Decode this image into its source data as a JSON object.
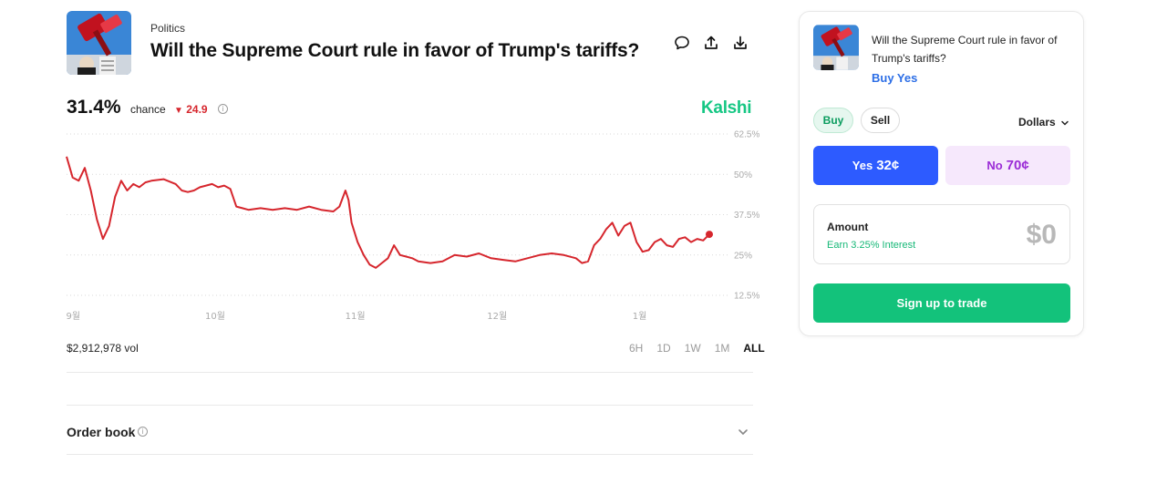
{
  "market": {
    "category": "Politics",
    "title": "Will the Supreme Court rule in favor of Trump's tariffs?",
    "chance_percent": "31.4%",
    "chance_word": "chance",
    "change": "24.9",
    "brand": "Kalshi",
    "volume": "$2,912,978 vol"
  },
  "header_icons": [
    "comment-icon",
    "share-icon",
    "download-icon"
  ],
  "chart_data": {
    "type": "line",
    "series": [
      {
        "color": "#d6262d",
        "points": [
          [
            0,
            55.5
          ],
          [
            1,
            49
          ],
          [
            2,
            48
          ],
          [
            3,
            52
          ],
          [
            4,
            45
          ],
          [
            5,
            36
          ],
          [
            6,
            30
          ],
          [
            7,
            34
          ],
          [
            8,
            43
          ],
          [
            9,
            48
          ],
          [
            10,
            45
          ],
          [
            11,
            47
          ],
          [
            12,
            46
          ],
          [
            13,
            47.5
          ],
          [
            14,
            48
          ],
          [
            16,
            48.5
          ],
          [
            18,
            47
          ],
          [
            19,
            45
          ],
          [
            20,
            44.5
          ],
          [
            21,
            45
          ],
          [
            22,
            46
          ],
          [
            23,
            46.5
          ],
          [
            24,
            47
          ],
          [
            25,
            46
          ],
          [
            26,
            46.5
          ],
          [
            27,
            45.5
          ],
          [
            28,
            40
          ],
          [
            29,
            39.5
          ],
          [
            30,
            39
          ],
          [
            32,
            39.5
          ],
          [
            34,
            39
          ],
          [
            36,
            39.5
          ],
          [
            38,
            39
          ],
          [
            40,
            40
          ],
          [
            42,
            39
          ],
          [
            44,
            38.5
          ],
          [
            45,
            40
          ],
          [
            46,
            45
          ],
          [
            46.5,
            42
          ],
          [
            47,
            35
          ],
          [
            48,
            29
          ],
          [
            49,
            25
          ],
          [
            50,
            22
          ],
          [
            51,
            21
          ],
          [
            52,
            22.5
          ],
          [
            53,
            24
          ],
          [
            54,
            28
          ],
          [
            55,
            25
          ],
          [
            56,
            24.5
          ],
          [
            57,
            24
          ],
          [
            58,
            23
          ],
          [
            60,
            22.5
          ],
          [
            62,
            23
          ],
          [
            64,
            25
          ],
          [
            66,
            24.5
          ],
          [
            68,
            25.5
          ],
          [
            70,
            24
          ],
          [
            72,
            23.5
          ],
          [
            74,
            23
          ],
          [
            76,
            24
          ],
          [
            78,
            25
          ],
          [
            80,
            25.5
          ],
          [
            82,
            25
          ],
          [
            84,
            24
          ],
          [
            85,
            22.5
          ],
          [
            86,
            23
          ],
          [
            87,
            28
          ],
          [
            88,
            30
          ],
          [
            89,
            33
          ],
          [
            90,
            35
          ],
          [
            91,
            31
          ],
          [
            92,
            34
          ],
          [
            93,
            35
          ],
          [
            94,
            29
          ],
          [
            95,
            26
          ],
          [
            96,
            26.5
          ],
          [
            97,
            29
          ],
          [
            98,
            30
          ],
          [
            99,
            28
          ],
          [
            100,
            27.5
          ],
          [
            101,
            30
          ],
          [
            102,
            30.5
          ],
          [
            103,
            29
          ],
          [
            104,
            30
          ],
          [
            105,
            29.5
          ],
          [
            106,
            31.4
          ]
        ]
      }
    ],
    "x_range": [
      0,
      106
    ],
    "y_range": [
      12.5,
      62.5
    ],
    "x_ticks": [
      {
        "x": 1.1,
        "label": "9월"
      },
      {
        "x": 24.5,
        "label": "10월"
      },
      {
        "x": 47.6,
        "label": "11월"
      },
      {
        "x": 71,
        "label": "12월"
      },
      {
        "x": 94.5,
        "label": "1월"
      }
    ],
    "y_ticks": [
      "62.5%",
      "50%",
      "37.5%",
      "25%",
      "12.5%"
    ],
    "y_tick_values": [
      62.5,
      50,
      37.5,
      25,
      12.5
    ],
    "grid": true
  },
  "ranges": {
    "tabs": [
      "6H",
      "1D",
      "1W",
      "1M",
      "ALL"
    ],
    "active": "ALL"
  },
  "order_book": {
    "label": "Order book"
  },
  "panel": {
    "question": "Will the Supreme Court rule in favor of Trump's tariffs?",
    "buy_yes": "Buy Yes",
    "buy_label": "Buy",
    "sell_label": "Sell",
    "currency": "Dollars",
    "yes_label": "Yes",
    "yes_price": "32¢",
    "no_label": "No",
    "no_price": "70¢",
    "amount_label": "Amount",
    "interest": "Earn 3.25% Interest",
    "amount_value": "$0",
    "signup_label": "Sign up to trade"
  },
  "colors": {
    "accent_green": "#13c27b",
    "yes_blue": "#2d5bff",
    "no_purple": "#9b2cd6",
    "down_red": "#d6262d"
  }
}
